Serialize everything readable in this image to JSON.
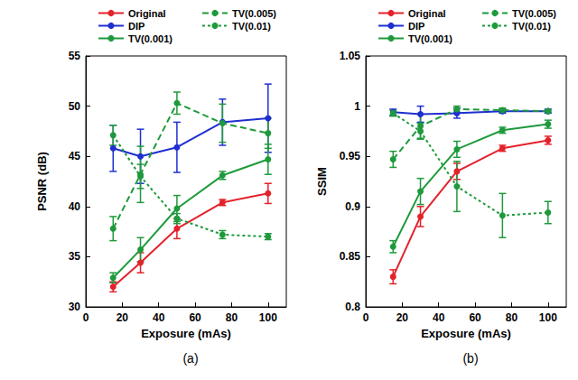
{
  "chart_data": [
    {
      "type": "line",
      "caption": "(a)",
      "xlabel": "Exposure (mAs)",
      "ylabel": "PSNR (dB)",
      "x": [
        15,
        30,
        50,
        75,
        100
      ],
      "xlim": [
        0,
        110
      ],
      "xticks": [
        0,
        20,
        40,
        60,
        80,
        100
      ],
      "ylim": [
        30,
        55
      ],
      "yticks": [
        30,
        35,
        40,
        45,
        50,
        55
      ],
      "legend": "top",
      "series": [
        {
          "name": "Original",
          "color": "#e3222b",
          "line_style": "solid",
          "marker": "circle",
          "values": [
            32.0,
            34.4,
            37.8,
            40.4,
            41.3
          ],
          "errors": [
            0.5,
            1.0,
            1.0,
            0.3,
            1.0
          ]
        },
        {
          "name": "DIP",
          "color": "#1f2fd0",
          "line_style": "solid",
          "marker": "circle",
          "values": [
            45.8,
            45.0,
            45.9,
            48.4,
            48.8
          ],
          "errors": [
            2.3,
            2.7,
            2.5,
            2.3,
            3.4
          ]
        },
        {
          "name": "TV(0.001)",
          "color": "#1e9a3c",
          "line_style": "solid",
          "marker": "circle",
          "values": [
            32.9,
            35.7,
            39.8,
            43.1,
            44.7
          ],
          "errors": [
            0.5,
            1.2,
            1.3,
            0.4,
            1.5
          ]
        },
        {
          "name": "TV(0.005)",
          "color": "#1e9a3c",
          "line_style": "dashed",
          "marker": "circle",
          "values": [
            37.8,
            43.2,
            50.3,
            48.3,
            47.3
          ],
          "errors": [
            1.2,
            2.8,
            1.1,
            1.9,
            1.5
          ]
        },
        {
          "name": "TV(0.01)",
          "color": "#1e9a3c",
          "line_style": "dotted",
          "marker": "circle",
          "values": [
            47.1,
            43.0,
            38.8,
            37.2,
            37.0
          ],
          "errors": [
            1.0,
            1.2,
            0.5,
            0.4,
            0.3
          ]
        }
      ]
    },
    {
      "type": "line",
      "caption": "(b)",
      "xlabel": "Exposure (mAs)",
      "ylabel": "SSIM",
      "x": [
        15,
        30,
        50,
        75,
        100
      ],
      "xlim": [
        0,
        110
      ],
      "xticks": [
        0,
        20,
        40,
        60,
        80,
        100
      ],
      "ylim": [
        0.8,
        1.05
      ],
      "yticks": [
        0.8,
        0.85,
        0.9,
        0.95,
        1,
        1.05
      ],
      "legend": "top",
      "series": [
        {
          "name": "Original",
          "color": "#e3222b",
          "line_style": "solid",
          "marker": "circle",
          "values": [
            0.83,
            0.89,
            0.935,
            0.958,
            0.966
          ],
          "errors": [
            0.007,
            0.01,
            0.008,
            0.003,
            0.004
          ]
        },
        {
          "name": "DIP",
          "color": "#1f2fd0",
          "line_style": "solid",
          "marker": "circle",
          "values": [
            0.994,
            0.992,
            0.993,
            0.995,
            0.995
          ],
          "errors": [
            0.003,
            0.008,
            0.005,
            0.002,
            0.002
          ]
        },
        {
          "name": "TV(0.001)",
          "color": "#1e9a3c",
          "line_style": "solid",
          "marker": "circle",
          "values": [
            0.86,
            0.915,
            0.957,
            0.976,
            0.982
          ],
          "errors": [
            0.006,
            0.013,
            0.008,
            0.003,
            0.004
          ]
        },
        {
          "name": "TV(0.005)",
          "color": "#1e9a3c",
          "line_style": "dashed",
          "marker": "circle",
          "values": [
            0.947,
            0.98,
            0.997,
            0.996,
            0.995
          ],
          "errors": [
            0.008,
            0.012,
            0.003,
            0.002,
            0.001
          ]
        },
        {
          "name": "TV(0.01)",
          "color": "#1e9a3c",
          "line_style": "dotted",
          "marker": "circle",
          "values": [
            0.993,
            0.975,
            0.92,
            0.891,
            0.894
          ],
          "errors": [
            0.003,
            0.008,
            0.025,
            0.022,
            0.011
          ]
        }
      ]
    }
  ]
}
